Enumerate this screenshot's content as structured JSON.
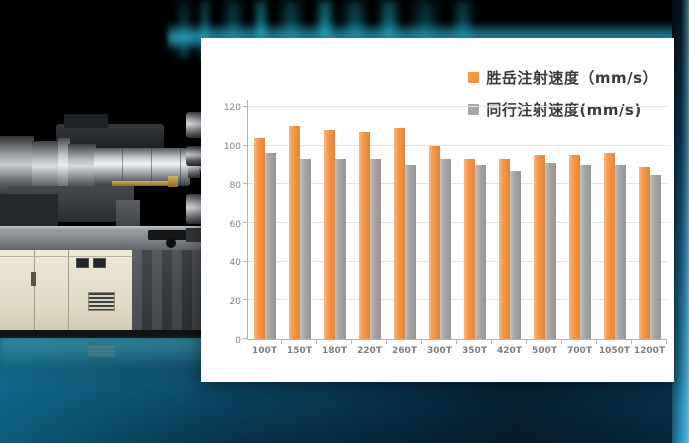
{
  "colors": {
    "bar_orange": "#F79646",
    "bar_gray": "#A6A6A6",
    "panel_bg": "#FFFFFF",
    "background_teal": "#1B6D96",
    "gridline": "#DBE5F1",
    "axis_text": "#7F7F7F",
    "legend_text": "#3B3B3B"
  },
  "icons": {
    "legend_swatch_orange": "orange-square-swatch",
    "legend_swatch_gray": "gray-square-swatch"
  },
  "chart_data": {
    "type": "bar",
    "title": "",
    "xlabel": "",
    "ylabel": "",
    "categories": [
      "100T",
      "150T",
      "180T",
      "220T",
      "260T",
      "300T",
      "350T",
      "420T",
      "500T",
      "700T",
      "1050T",
      "1200T"
    ],
    "series": [
      {
        "name": "胜岳注射速度（mm/s）",
        "color": "#F79646",
        "values": [
          104,
          110,
          108,
          107,
          109,
          100,
          93,
          93,
          95,
          95,
          96,
          89
        ]
      },
      {
        "name": "同行注射速度(mm/s)",
        "color": "#A6A6A6",
        "values": [
          96,
          93,
          93,
          93,
          90,
          93,
          90,
          87,
          91,
          90,
          90,
          85
        ]
      }
    ],
    "ylim": [
      0,
      120
    ],
    "yticks": [
      0,
      20,
      40,
      60,
      80,
      100,
      120
    ],
    "grid": "horizontal",
    "legend_position": "top-right"
  }
}
